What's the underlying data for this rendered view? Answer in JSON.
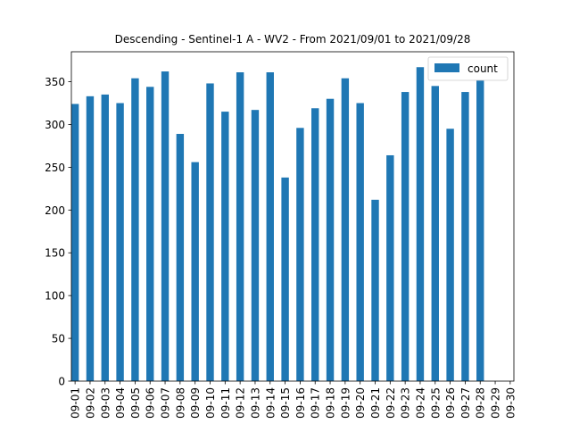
{
  "chart_data": {
    "type": "bar",
    "title": "Descending - Sentinel-1 A - WV2 - From 2021/09/01 to 2021/09/28",
    "xlabel": "",
    "ylabel": "",
    "ylim": [
      0,
      385
    ],
    "yticks": [
      0,
      50,
      100,
      150,
      200,
      250,
      300,
      350
    ],
    "grid": false,
    "legend_position": "top-right",
    "categories": [
      "09-01",
      "09-02",
      "09-03",
      "09-04",
      "09-05",
      "09-06",
      "09-07",
      "09-08",
      "09-09",
      "09-10",
      "09-11",
      "09-12",
      "09-13",
      "09-14",
      "09-15",
      "09-16",
      "09-17",
      "09-18",
      "09-19",
      "09-20",
      "09-21",
      "09-22",
      "09-23",
      "09-24",
      "09-25",
      "09-26",
      "09-27",
      "09-28",
      "09-29",
      "09-30"
    ],
    "series": [
      {
        "name": "count",
        "color": "#1f77b4",
        "values": [
          324,
          333,
          335,
          325,
          354,
          344,
          362,
          289,
          256,
          348,
          315,
          361,
          317,
          361,
          238,
          296,
          319,
          330,
          354,
          325,
          212,
          264,
          338,
          367,
          345,
          295,
          338,
          352,
          null,
          null
        ]
      }
    ]
  }
}
